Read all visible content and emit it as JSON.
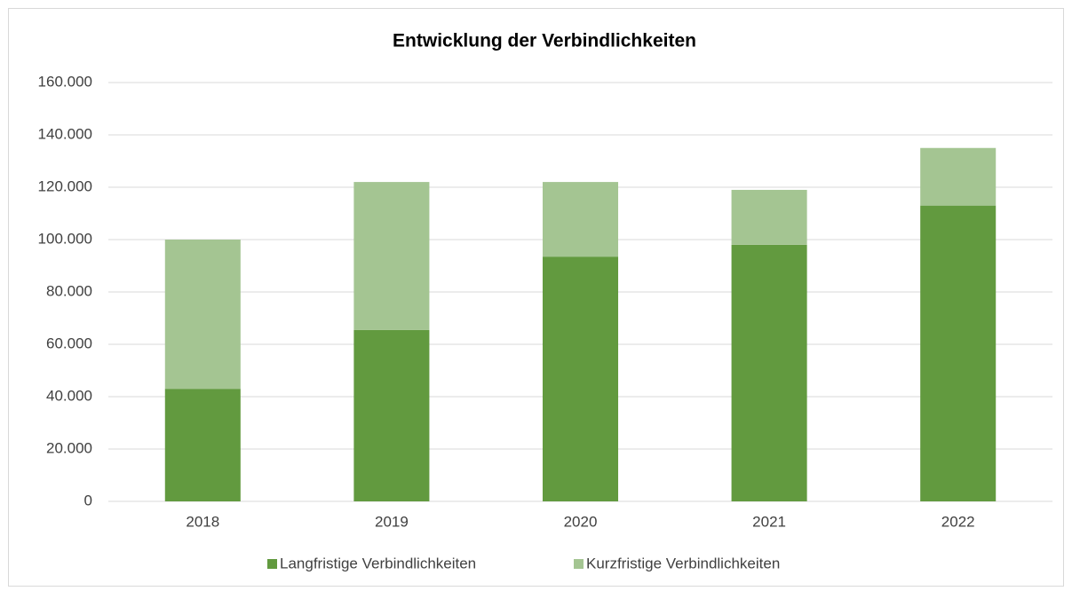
{
  "chart_data": {
    "type": "stacked_bar",
    "title": "Entwicklung der Verbindlichkeiten",
    "categories": [
      "2018",
      "2019",
      "2020",
      "2021",
      "2022"
    ],
    "series": [
      {
        "name": "Langfristige Verbindlichkeiten",
        "color": "#629a3f",
        "values": [
          43000,
          65500,
          93500,
          98000,
          113000
        ]
      },
      {
        "name": "Kurzfristige Verbindlichkeiten",
        "color": "#a4c592",
        "values": [
          57000,
          56500,
          28500,
          21000,
          22000
        ]
      }
    ],
    "ylim": [
      0,
      160000
    ],
    "yticks": [
      0,
      {
        "value": 20000,
        "label": "20.000"
      },
      {
        "value": 40000,
        "label": "40.000"
      },
      {
        "value": 60000,
        "label": "60.000"
      },
      {
        "value": 80000,
        "label": "80.000"
      },
      {
        "value": 100000,
        "label": "100.000"
      },
      {
        "value": 120000,
        "label": "120.000"
      },
      {
        "value": 140000,
        "label": "140.000"
      },
      {
        "value": 160000,
        "label": "160.000"
      }
    ],
    "grid": true,
    "legend": "bottom"
  }
}
